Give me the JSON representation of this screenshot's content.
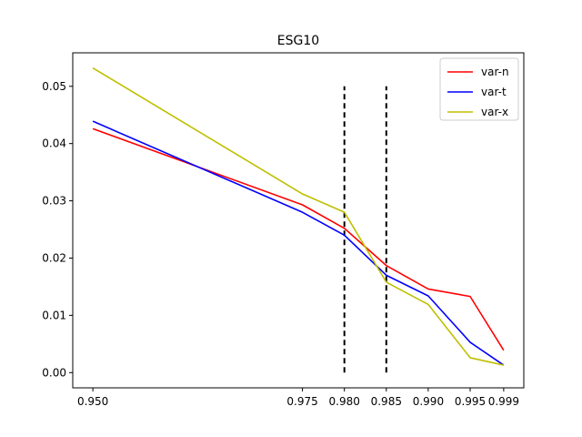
{
  "chart_data": {
    "type": "line",
    "title": "ESG10",
    "xlabel": "",
    "ylabel": "",
    "xlim": [
      0.9476,
      1.0014
    ],
    "ylim": [
      -0.00266,
      0.05585
    ],
    "x_ticks": [
      0.95,
      0.975,
      0.98,
      0.985,
      0.99,
      0.995,
      0.999
    ],
    "x_tick_labels": [
      "0.950",
      "0.975",
      "0.980",
      "0.985",
      "0.990",
      "0.995",
      "0.999"
    ],
    "y_ticks": [
      0.0,
      0.01,
      0.02,
      0.03,
      0.04,
      0.05
    ],
    "y_tick_labels": [
      "0.00",
      "0.01",
      "0.02",
      "0.03",
      "0.04",
      "0.05"
    ],
    "grid": false,
    "legend_position": "top-right",
    "series": [
      {
        "name": "var-n",
        "color": "#ff0000",
        "x": [
          0.95,
          0.975,
          0.98,
          0.985,
          0.99,
          0.995,
          0.999
        ],
        "y": [
          0.0426,
          0.0293,
          0.0252,
          0.0187,
          0.0146,
          0.0133,
          0.0039
        ]
      },
      {
        "name": "var-t",
        "color": "#0000ff",
        "x": [
          0.95,
          0.975,
          0.98,
          0.985,
          0.99,
          0.995,
          0.999
        ],
        "y": [
          0.0439,
          0.028,
          0.024,
          0.017,
          0.0134,
          0.0053,
          0.0013
        ]
      },
      {
        "name": "var-x",
        "color": "#bfbf00",
        "x": [
          0.95,
          0.975,
          0.98,
          0.985,
          0.99,
          0.995,
          0.999
        ],
        "y": [
          0.0532,
          0.0312,
          0.028,
          0.0158,
          0.0119,
          0.0026,
          0.0013
        ]
      }
    ],
    "vlines": [
      {
        "x": 0.98,
        "y_from": 0.0,
        "y_to": 0.05,
        "style": "dashed",
        "color": "#000000"
      },
      {
        "x": 0.985,
        "y_from": 0.0,
        "y_to": 0.05,
        "style": "dashed",
        "color": "#000000"
      }
    ]
  }
}
